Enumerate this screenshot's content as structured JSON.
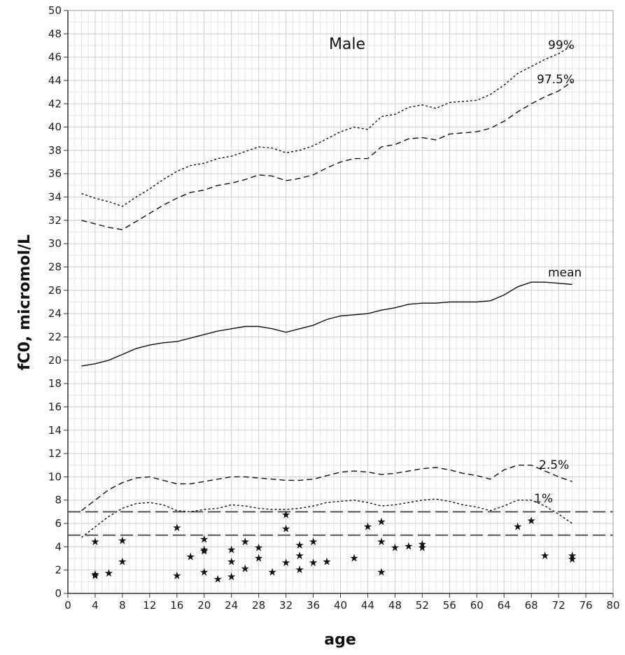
{
  "chart_data": {
    "type": "line",
    "title": "Male",
    "xlabel": "age",
    "ylabel": "fC0, micromol/L",
    "xlim": [
      0,
      80
    ],
    "ylim": [
      0,
      50
    ],
    "x_ticks": [
      0,
      4,
      8,
      12,
      16,
      20,
      24,
      28,
      32,
      36,
      40,
      44,
      48,
      52,
      56,
      60,
      64,
      68,
      72,
      76,
      80
    ],
    "y_ticks": [
      0,
      2,
      4,
      6,
      8,
      10,
      12,
      14,
      16,
      18,
      20,
      22,
      24,
      26,
      28,
      30,
      32,
      34,
      36,
      38,
      40,
      42,
      44,
      46,
      48,
      50
    ],
    "grid": true,
    "series": [
      {
        "name": "99%",
        "style": "dotted",
        "x": [
          2,
          4,
          6,
          8,
          10,
          12,
          14,
          16,
          18,
          20,
          22,
          24,
          26,
          28,
          30,
          32,
          34,
          36,
          38,
          40,
          42,
          44,
          46,
          48,
          50,
          52,
          54,
          56,
          58,
          60,
          62,
          64,
          66,
          68,
          70,
          72,
          74
        ],
        "y": [
          34.3,
          33.9,
          33.6,
          33.2,
          34.0,
          34.7,
          35.5,
          36.2,
          36.7,
          36.9,
          37.3,
          37.5,
          37.9,
          38.3,
          38.2,
          37.8,
          38.0,
          38.4,
          39.0,
          39.6,
          40.0,
          39.8,
          40.9,
          41.1,
          41.7,
          41.9,
          41.6,
          42.1,
          42.2,
          42.3,
          42.8,
          43.6,
          44.6,
          45.2,
          45.8,
          46.3,
          47.0
        ]
      },
      {
        "name": "97.5%",
        "style": "dashed",
        "x": [
          2,
          4,
          6,
          8,
          10,
          12,
          14,
          16,
          18,
          20,
          22,
          24,
          26,
          28,
          30,
          32,
          34,
          36,
          38,
          40,
          42,
          44,
          46,
          48,
          50,
          52,
          54,
          56,
          58,
          60,
          62,
          64,
          66,
          68,
          70,
          72,
          74
        ],
        "y": [
          32.0,
          31.7,
          31.4,
          31.2,
          31.9,
          32.6,
          33.3,
          33.9,
          34.4,
          34.6,
          35.0,
          35.2,
          35.5,
          35.9,
          35.8,
          35.4,
          35.6,
          35.9,
          36.5,
          37.0,
          37.3,
          37.3,
          38.3,
          38.5,
          39.0,
          39.1,
          38.9,
          39.4,
          39.5,
          39.6,
          39.9,
          40.5,
          41.3,
          42.0,
          42.6,
          43.1,
          43.9
        ]
      },
      {
        "name": "mean",
        "style": "solid",
        "x": [
          2,
          4,
          6,
          8,
          10,
          12,
          14,
          16,
          18,
          20,
          22,
          24,
          26,
          28,
          30,
          32,
          34,
          36,
          38,
          40,
          42,
          44,
          46,
          48,
          50,
          52,
          54,
          56,
          58,
          60,
          62,
          64,
          66,
          68,
          70,
          72,
          74
        ],
        "y": [
          19.5,
          19.7,
          20.0,
          20.5,
          21.0,
          21.3,
          21.5,
          21.6,
          21.9,
          22.2,
          22.5,
          22.7,
          22.9,
          22.9,
          22.7,
          22.4,
          22.7,
          23.0,
          23.5,
          23.8,
          23.9,
          24.0,
          24.3,
          24.5,
          24.8,
          24.9,
          24.9,
          25.0,
          25.0,
          25.0,
          25.1,
          25.6,
          26.3,
          26.7,
          26.7,
          26.6,
          26.5
        ]
      },
      {
        "name": "2.5%",
        "style": "dashed",
        "x": [
          2,
          4,
          6,
          8,
          10,
          12,
          14,
          16,
          18,
          20,
          22,
          24,
          26,
          28,
          30,
          32,
          34,
          36,
          38,
          40,
          42,
          44,
          46,
          48,
          50,
          52,
          54,
          56,
          58,
          60,
          62,
          64,
          66,
          68,
          70,
          72,
          74
        ],
        "y": [
          7.1,
          8.0,
          8.9,
          9.5,
          9.9,
          10.0,
          9.7,
          9.4,
          9.4,
          9.6,
          9.8,
          10.0,
          10.0,
          9.9,
          9.8,
          9.7,
          9.7,
          9.8,
          10.1,
          10.4,
          10.5,
          10.4,
          10.2,
          10.3,
          10.5,
          10.7,
          10.8,
          10.6,
          10.3,
          10.1,
          9.8,
          10.6,
          11.0,
          11.0,
          10.5,
          10.0,
          9.6
        ]
      },
      {
        "name": "1%",
        "style": "dotted",
        "x": [
          2,
          4,
          6,
          8,
          10,
          12,
          14,
          16,
          18,
          20,
          22,
          24,
          26,
          28,
          30,
          32,
          34,
          36,
          38,
          40,
          42,
          44,
          46,
          48,
          50,
          52,
          54,
          56,
          58,
          60,
          62,
          64,
          66,
          68,
          70,
          72,
          74
        ],
        "y": [
          4.8,
          5.7,
          6.6,
          7.3,
          7.7,
          7.8,
          7.6,
          7.1,
          7.0,
          7.2,
          7.3,
          7.6,
          7.5,
          7.3,
          7.2,
          7.2,
          7.3,
          7.5,
          7.8,
          7.9,
          8.0,
          7.8,
          7.5,
          7.6,
          7.8,
          8.0,
          8.1,
          7.9,
          7.6,
          7.4,
          7.1,
          7.5,
          8.0,
          8.0,
          7.5,
          6.8,
          6.0
        ]
      }
    ],
    "reference_lines": [
      7,
      5
    ],
    "scatter_points": {
      "x": [
        4,
        4,
        4,
        6,
        8,
        8,
        16,
        16,
        18,
        20,
        20,
        20,
        20,
        22,
        24,
        24,
        24,
        26,
        26,
        28,
        28,
        30,
        32,
        32,
        32,
        34,
        34,
        34,
        36,
        36,
        38,
        42,
        44,
        46,
        46,
        46,
        48,
        50,
        52,
        52,
        66,
        68,
        70,
        74,
        74
      ],
      "y": [
        4.5,
        1.7,
        1.6,
        1.8,
        4.6,
        2.8,
        5.7,
        1.6,
        3.2,
        4.7,
        3.8,
        3.7,
        1.9,
        1.3,
        3.8,
        2.8,
        1.5,
        4.5,
        2.2,
        4.0,
        3.1,
        1.9,
        6.8,
        5.6,
        2.7,
        4.2,
        3.3,
        2.1,
        4.5,
        2.7,
        2.8,
        3.1,
        5.8,
        6.2,
        4.5,
        1.9,
        4.0,
        4.1,
        4.3,
        4.0,
        5.8,
        6.3,
        3.3,
        3.3,
        3.0
      ]
    }
  }
}
